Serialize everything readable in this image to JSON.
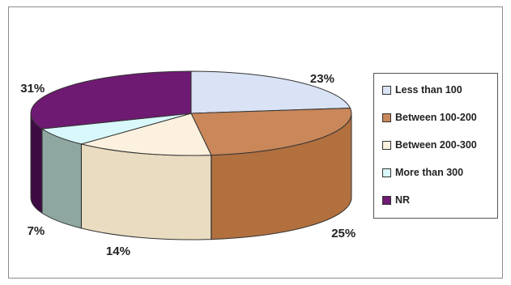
{
  "chart_data": {
    "type": "pie",
    "title": "",
    "labels": [
      "Less than 100",
      "Between 100-200",
      "Between 200-300",
      "More than 300",
      "NR"
    ],
    "values": [
      23,
      25,
      14,
      7,
      31
    ],
    "value_labels": [
      "23%",
      "25%",
      "14%",
      "7%",
      "31%"
    ],
    "colors": [
      "#d9e3f5",
      "#c9875a",
      "#fbf1de",
      "#d9f8fb",
      "#6e1a72"
    ],
    "side_colors": [
      "#aeb8cc",
      "#b2703f",
      "#e9dcc0",
      "#8ea7a1",
      "#3e0b43"
    ],
    "legend_position": "right",
    "three_d": true
  }
}
